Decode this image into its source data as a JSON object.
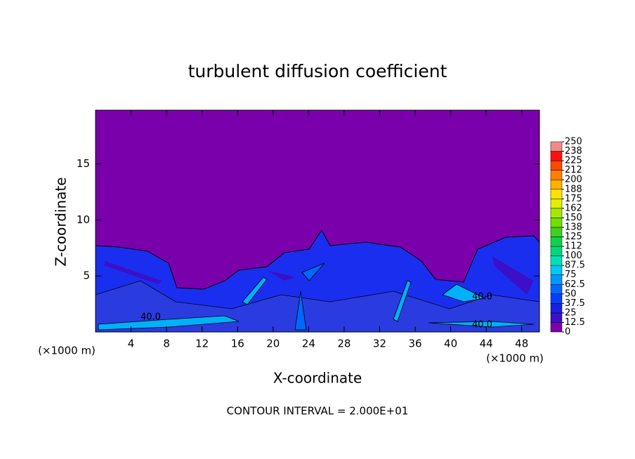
{
  "chart_data": {
    "type": "contour",
    "title": "turbulent diffusion coefficient",
    "x_label": "X-coordinate",
    "y_label": "Z-coordinate",
    "x_unit_label": "(×1000 m)",
    "footer": "CONTOUR INTERVAL = 2.000E+01",
    "contour_labels": [
      "40.0",
      "40.0",
      "40.0"
    ],
    "xlim": [
      0,
      50
    ],
    "xticks": [
      4,
      8,
      12,
      16,
      20,
      24,
      28,
      32,
      36,
      40,
      44,
      48
    ],
    "ylim": [
      0,
      19.8
    ],
    "yticks": [
      5,
      10,
      15
    ],
    "colorbar": {
      "levels": [
        0,
        12.5,
        25,
        37.5,
        50,
        62.5,
        75,
        87.5,
        100,
        {
          "value": 112.5,
          "label": "112"
        },
        125,
        {
          "value": 137.5,
          "label": "138"
        },
        150,
        {
          "value": 162.5,
          "label": "162"
        },
        175,
        {
          "value": 187.5,
          "label": "188"
        },
        200,
        {
          "value": 212.5,
          "label": "212"
        },
        225,
        {
          "value": 237.5,
          "label": "238"
        },
        250
      ],
      "colors": [
        "#7a00ac",
        "#3c10c8",
        "#1a20e0",
        "#0040ff",
        "#0068ff",
        "#0098ff",
        "#00c8f0",
        "#00e0b8",
        "#00d880",
        "#10d050",
        "#40d020",
        "#70e000",
        "#a8e800",
        "#e0f000",
        "#ffe000",
        "#ffb000",
        "#ff8000",
        "#ff4800",
        "#ff1010",
        "#f08a8a"
      ]
    }
  }
}
